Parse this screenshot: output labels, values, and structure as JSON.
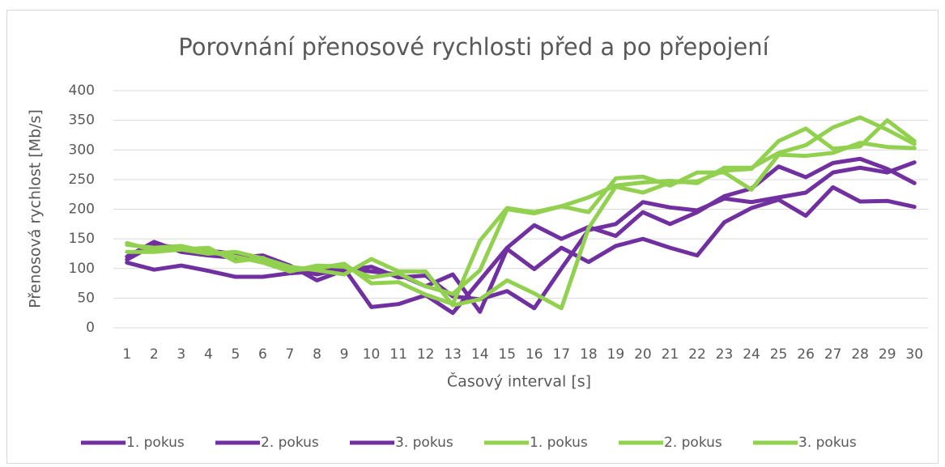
{
  "chart_data": {
    "type": "line",
    "title": "Porovnání přenosové rychlosti před a po přepojení",
    "x_label": "Časový interval [s]",
    "y_label": "Přenosová rychlost [Mb/s]",
    "categories": [
      "1",
      "2",
      "3",
      "4",
      "5",
      "6",
      "7",
      "8",
      "9",
      "10",
      "11",
      "12",
      "13",
      "14",
      "15",
      "16",
      "17",
      "18",
      "19",
      "20",
      "21",
      "22",
      "23",
      "24",
      "25",
      "26",
      "27",
      "28",
      "29",
      "30"
    ],
    "ylim": [
      0,
      400
    ],
    "yticks": [
      0,
      50,
      100,
      150,
      200,
      250,
      300,
      350,
      400
    ],
    "grid": true,
    "legend": "bottom",
    "series": [
      {
        "name": "1. pokus",
        "color": "#7030a0",
        "values": [
          110,
          98,
          105,
          96,
          86,
          86,
          92,
          95,
          100,
          35,
          40,
          55,
          25,
          80,
          135,
          173,
          150,
          170,
          155,
          195,
          175,
          195,
          222,
          235,
          272,
          254,
          278,
          285,
          268,
          244
        ]
      },
      {
        "name": "2. pokus",
        "color": "#7030a0",
        "values": [
          120,
          145,
          128,
          122,
          118,
          122,
          105,
          80,
          97,
          103,
          85,
          88,
          53,
          48,
          62,
          33,
          100,
          165,
          175,
          212,
          203,
          198,
          218,
          212,
          220,
          228,
          262,
          270,
          262,
          279
        ]
      },
      {
        "name": "3. pokus",
        "color": "#7030a0",
        "values": [
          115,
          140,
          135,
          130,
          125,
          115,
          100,
          90,
          100,
          95,
          90,
          70,
          90,
          27,
          133,
          99,
          135,
          111,
          138,
          150,
          135,
          122,
          178,
          202,
          216,
          189,
          237,
          213,
          214,
          204
        ]
      },
      {
        "name": "1. pokus",
        "color": "#92d050",
        "values": [
          143,
          130,
          132,
          135,
          112,
          118,
          97,
          100,
          108,
          75,
          77,
          56,
          40,
          147,
          202,
          195,
          205,
          195,
          252,
          255,
          240,
          262,
          262,
          233,
          292,
          290,
          295,
          312,
          305,
          303
        ]
      },
      {
        "name": "2. pokus",
        "color": "#92d050",
        "values": [
          128,
          128,
          132,
          125,
          128,
          117,
          103,
          97,
          90,
          116,
          95,
          95,
          38,
          48,
          80,
          58,
          33,
          168,
          238,
          228,
          245,
          247,
          265,
          268,
          315,
          336,
          302,
          306,
          350,
          315
        ]
      },
      {
        "name": "3. pokus",
        "color": "#92d050",
        "values": [
          140,
          135,
          138,
          128,
          120,
          110,
          95,
          105,
          103,
          85,
          92,
          70,
          57,
          97,
          200,
          193,
          205,
          220,
          240,
          245,
          248,
          244,
          270,
          270,
          295,
          308,
          338,
          355,
          334,
          310
        ]
      }
    ]
  }
}
